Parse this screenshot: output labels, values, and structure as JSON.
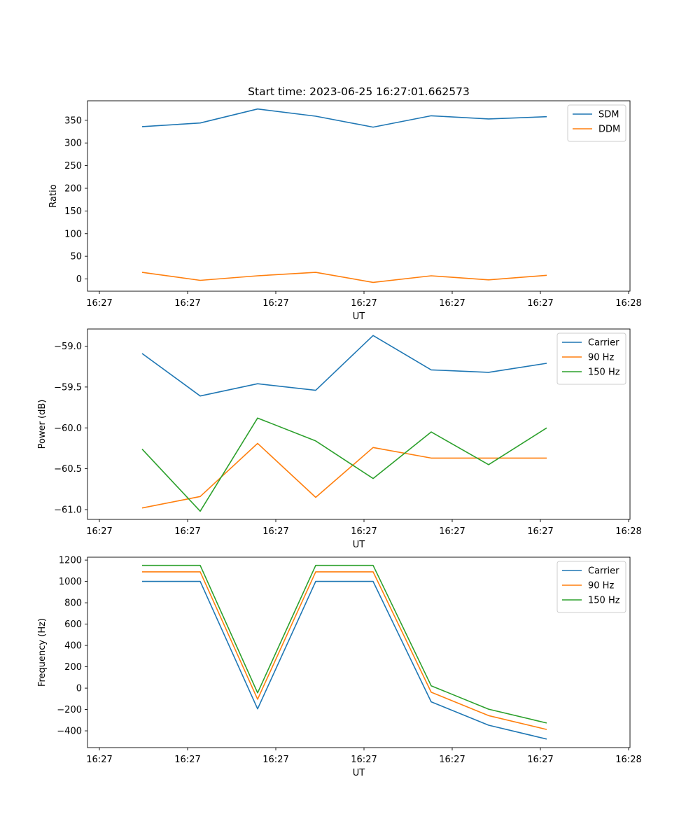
{
  "figure": {
    "title": "Start time: 2023-06-25 16:27:01.662573"
  },
  "colors": {
    "blue": "#1f77b4",
    "orange": "#ff7f0e",
    "green": "#2ca02c"
  },
  "chart_data": [
    {
      "type": "line",
      "title": "Start time: 2023-06-25 16:27:01.662573",
      "xlabel": "UT",
      "ylabel": "Ratio",
      "x_tick_labels": [
        "16:27",
        "16:27",
        "16:27",
        "16:27",
        "16:27",
        "16:27",
        "16:28"
      ],
      "yticks": [
        0,
        50,
        100,
        150,
        200,
        250,
        300,
        350
      ],
      "ylim": [
        -27,
        393
      ],
      "legend_position": "upper right",
      "series": [
        {
          "name": "SDM",
          "color": "#1f77b4",
          "values": [
            336,
            344,
            375,
            359,
            335,
            360,
            353,
            358
          ]
        },
        {
          "name": "DDM",
          "color": "#ff7f0e",
          "values": [
            14.5,
            -3,
            7,
            14.5,
            -7.5,
            7,
            -2,
            8
          ]
        }
      ]
    },
    {
      "type": "line",
      "title": "",
      "xlabel": "UT",
      "ylabel": "Power (dB)",
      "x_tick_labels": [
        "16:27",
        "16:27",
        "16:27",
        "16:27",
        "16:27",
        "16:27",
        "16:28"
      ],
      "yticks": [
        -59.0,
        -59.5,
        -60.0,
        -60.5,
        -61.0
      ],
      "ytick_labels": [
        "−59.0",
        "−59.5",
        "−60.0",
        "−60.5",
        "−61.0"
      ],
      "ylim": [
        -61.12,
        -58.79
      ],
      "legend_position": "upper right",
      "series": [
        {
          "name": "Carrier",
          "color": "#1f77b4",
          "values": [
            -59.09,
            -59.61,
            -59.46,
            -59.54,
            -58.87,
            -59.29,
            -59.32,
            -59.21
          ]
        },
        {
          "name": "90 Hz",
          "color": "#ff7f0e",
          "values": [
            -60.98,
            -60.84,
            -60.19,
            -60.85,
            -60.24,
            -60.37,
            -60.37,
            -60.37
          ]
        },
        {
          "name": "150 Hz",
          "color": "#2ca02c",
          "values": [
            -60.26,
            -61.02,
            -59.88,
            -60.16,
            -60.62,
            -60.05,
            -60.45,
            -60.0
          ]
        }
      ]
    },
    {
      "type": "line",
      "title": "",
      "xlabel": "UT",
      "ylabel": "Frequency (Hz)",
      "x_tick_labels": [
        "16:27",
        "16:27",
        "16:27",
        "16:27",
        "16:27",
        "16:27",
        "16:28"
      ],
      "yticks": [
        1200,
        1000,
        800,
        600,
        400,
        200,
        0,
        -200,
        -400
      ],
      "ytick_labels": [
        "1200",
        "1000",
        "800",
        "600",
        "400",
        "200",
        "0",
        "−200",
        "−400"
      ],
      "ylim": [
        -557,
        1227
      ],
      "legend_position": "upper right",
      "series": [
        {
          "name": "Carrier",
          "color": "#1f77b4",
          "values": [
            1000,
            1000,
            -194,
            1000,
            1000,
            -128,
            -347,
            -477
          ]
        },
        {
          "name": "90 Hz",
          "color": "#ff7f0e",
          "values": [
            1090,
            1090,
            -104,
            1090,
            1090,
            -38,
            -257,
            -387
          ]
        },
        {
          "name": "150 Hz",
          "color": "#2ca02c",
          "values": [
            1150,
            1150,
            -44,
            1150,
            1150,
            22,
            -197,
            -327
          ]
        }
      ]
    }
  ]
}
